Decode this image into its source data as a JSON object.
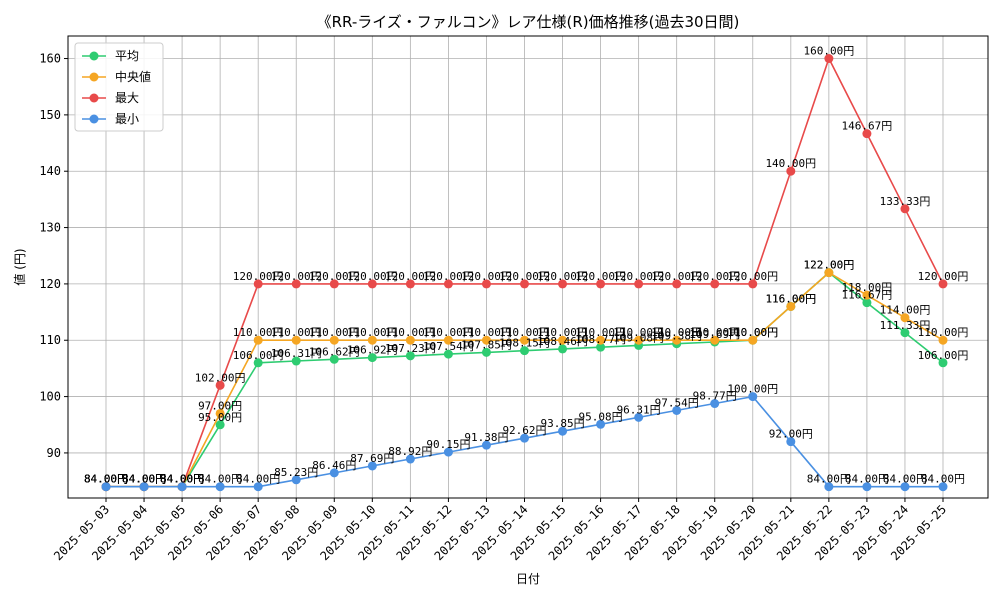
{
  "chart_data": {
    "type": "line",
    "title": "《RR-ライズ・ファルコン》レア仕様(R)価格推移(過去30日間)",
    "xlabel": "日付",
    "ylabel": "値 (円)",
    "ylim": [
      82,
      164
    ],
    "yticks": [
      90,
      100,
      110,
      120,
      130,
      140,
      150,
      160
    ],
    "grid": true,
    "legend_position": "top-left",
    "value_suffix": "円",
    "categories": [
      "2025-05-03",
      "2025-05-04",
      "2025-05-05",
      "2025-05-06",
      "2025-05-07",
      "2025-05-08",
      "2025-05-09",
      "2025-05-10",
      "2025-05-11",
      "2025-05-12",
      "2025-05-13",
      "2025-05-14",
      "2025-05-15",
      "2025-05-16",
      "2025-05-17",
      "2025-05-18",
      "2025-05-19",
      "2025-05-20",
      "2025-05-21",
      "2025-05-22",
      "2025-05-23",
      "2025-05-24",
      "2025-05-25"
    ],
    "series": [
      {
        "name": "平均",
        "color": "#2ecc71",
        "values": [
          84.0,
          84.0,
          84.0,
          95.0,
          106.0,
          106.31,
          106.62,
          106.92,
          107.23,
          107.54,
          107.85,
          108.15,
          108.46,
          108.77,
          109.08,
          109.38,
          109.69,
          110.0,
          116.0,
          122.0,
          116.67,
          111.33,
          106.0
        ]
      },
      {
        "name": "中央値",
        "color": "#f5a623",
        "values": [
          84.0,
          84.0,
          84.0,
          97.0,
          110.0,
          110.0,
          110.0,
          110.0,
          110.0,
          110.0,
          110.0,
          110.0,
          110.0,
          110.0,
          110.0,
          110.0,
          110.0,
          110.0,
          116.0,
          122.0,
          118.0,
          114.0,
          110.0
        ]
      },
      {
        "name": "最大",
        "color": "#e84a4a",
        "values": [
          84.0,
          84.0,
          84.0,
          102.0,
          120.0,
          120.0,
          120.0,
          120.0,
          120.0,
          120.0,
          120.0,
          120.0,
          120.0,
          120.0,
          120.0,
          120.0,
          120.0,
          120.0,
          140.0,
          160.0,
          146.67,
          133.33,
          120.0
        ]
      },
      {
        "name": "最小",
        "color": "#4a90e2",
        "values": [
          84.0,
          84.0,
          84.0,
          84.0,
          84.0,
          85.23,
          86.46,
          87.69,
          88.92,
          90.15,
          91.38,
          92.62,
          93.85,
          95.08,
          96.31,
          97.54,
          98.77,
          100.0,
          92.0,
          84.0,
          84.0,
          84.0,
          84.0
        ]
      }
    ]
  }
}
